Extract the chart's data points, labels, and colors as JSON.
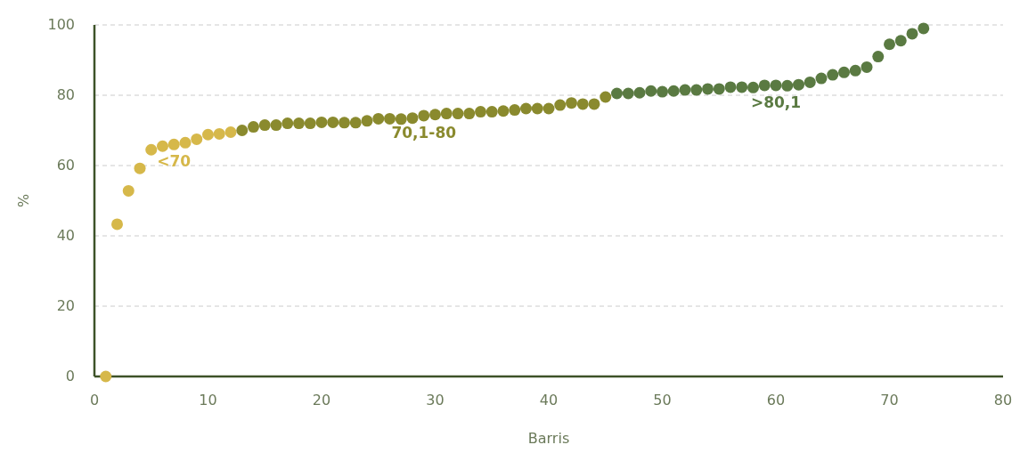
{
  "chart_data": {
    "type": "scatter",
    "xlabel": "Barris",
    "ylabel": "%",
    "xlim": [
      0,
      80
    ],
    "xticks": [
      0,
      10,
      20,
      30,
      40,
      50,
      60,
      70,
      80
    ],
    "ylim": [
      0,
      100
    ],
    "yticks": [
      0,
      20,
      40,
      60,
      80,
      100
    ],
    "grid": "y",
    "marker": "circle",
    "series": [
      {
        "name": "<70",
        "color": "#d6b84a",
        "x": [
          1,
          2,
          3,
          4,
          5,
          6,
          7,
          8,
          9,
          10,
          11,
          12
        ],
        "values": [
          0,
          43.3,
          52.8,
          59.2,
          64.5,
          65.5,
          66,
          66.5,
          67.5,
          68.8,
          69,
          69.5
        ]
      },
      {
        "name": "70,1-80",
        "color": "#8a8a2e",
        "x": [
          13,
          14,
          15,
          16,
          17,
          18,
          19,
          20,
          21,
          22,
          23,
          24,
          25,
          26,
          27,
          28,
          29,
          30,
          31,
          32,
          33,
          34,
          35,
          36,
          37,
          38,
          39,
          40,
          41,
          42,
          43,
          44,
          45
        ],
        "values": [
          70,
          71,
          71.5,
          71.5,
          72,
          72,
          72,
          72.3,
          72.3,
          72.2,
          72.2,
          72.7,
          73.3,
          73.3,
          73.2,
          73.5,
          74.2,
          74.5,
          74.8,
          74.8,
          74.8,
          75.3,
          75.3,
          75.5,
          75.8,
          76.2,
          76.2,
          76.2,
          77.2,
          77.8,
          77.5,
          77.5,
          79.5
        ]
      },
      {
        "name": ">80,1",
        "color": "#5a7a42",
        "x": [
          46,
          47,
          48,
          49,
          50,
          51,
          52,
          53,
          54,
          55,
          56,
          57,
          58,
          59,
          60,
          61,
          62,
          63,
          64,
          65,
          66,
          67,
          68,
          69,
          70,
          71,
          72,
          73
        ],
        "values": [
          80.5,
          80.5,
          80.7,
          81.2,
          81,
          81.2,
          81.5,
          81.5,
          81.8,
          81.8,
          82.3,
          82.3,
          82.2,
          82.8,
          82.8,
          82.7,
          83,
          83.7,
          84.8,
          85.8,
          86.5,
          87,
          88,
          91,
          94.5,
          95.5,
          97.5,
          99
        ]
      }
    ]
  }
}
